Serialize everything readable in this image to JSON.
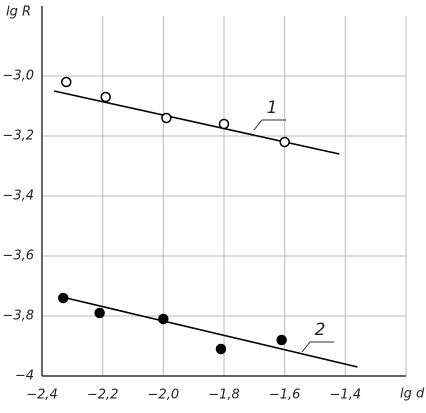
{
  "chart_data": {
    "type": "scatter",
    "y_label": "lg R",
    "x_label": "lg d",
    "xlim": [
      -2.4,
      -1.2
    ],
    "ylim": [
      -4,
      -2.8
    ],
    "xticks": [
      {
        "value": -2.4,
        "label": "−2,4"
      },
      {
        "value": -2.2,
        "label": "−2,2"
      },
      {
        "value": -2.0,
        "label": "−2,0"
      },
      {
        "value": -1.8,
        "label": "−1,8"
      },
      {
        "value": -1.6,
        "label": "−1,6"
      },
      {
        "value": -1.4,
        "label": "−1,4"
      }
    ],
    "yticks": [
      {
        "value": -4,
        "label": "−4"
      },
      {
        "value": -3.8,
        "label": "−3,8"
      },
      {
        "value": -3.6,
        "label": "−3,6"
      },
      {
        "value": -3.4,
        "label": "−3,4"
      },
      {
        "value": -3.2,
        "label": "−3,2"
      },
      {
        "value": -3.0,
        "label": "−3,0"
      }
    ],
    "grid": true,
    "series": [
      {
        "name": "1",
        "color": "#000000",
        "marker_fill": "#ffffff",
        "x": [
          -2.32,
          -2.19,
          -1.99,
          -1.8,
          -1.6
        ],
        "values": [
          -3.02,
          -3.07,
          -3.14,
          -3.16,
          -3.22
        ],
        "fit": {
          "x": [
            -2.36,
            -1.42
          ],
          "y": [
            -3.05,
            -3.26
          ]
        }
      },
      {
        "name": "2",
        "color": "#000000",
        "marker_fill": "#000000",
        "x": [
          -2.33,
          -2.21,
          -2.0,
          -1.81,
          -1.61
        ],
        "values": [
          -3.74,
          -3.79,
          -3.81,
          -3.91,
          -3.88
        ],
        "fit": {
          "x": [
            -2.32,
            -1.36
          ],
          "y": [
            -3.74,
            -3.97
          ]
        }
      }
    ]
  }
}
